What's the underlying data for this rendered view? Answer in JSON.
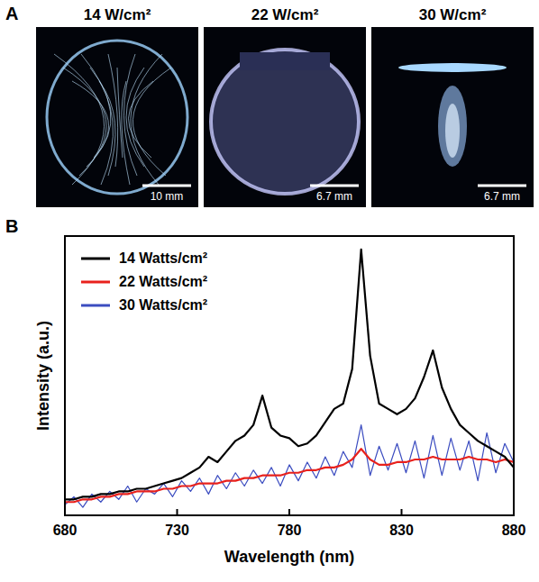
{
  "panel_letters": [
    "A",
    "B"
  ],
  "panel_a": {
    "images": [
      {
        "title": "14 W/cm²",
        "scale_bar": "10 mm"
      },
      {
        "title": "22 W/cm²",
        "scale_bar": "6.7 mm"
      },
      {
        "title": "30 W/cm²",
        "scale_bar": "6.7 mm"
      }
    ]
  },
  "chart_data": {
    "type": "line",
    "x_label": "Wavelength (nm)",
    "y_label": "Intensity (a.u.)",
    "x": [
      680,
      684,
      688,
      692,
      696,
      700,
      704,
      708,
      712,
      716,
      720,
      724,
      728,
      732,
      736,
      740,
      744,
      748,
      752,
      756,
      760,
      764,
      768,
      772,
      776,
      780,
      784,
      788,
      792,
      796,
      800,
      804,
      808,
      812,
      816,
      820,
      824,
      828,
      832,
      836,
      840,
      844,
      848,
      852,
      856,
      860,
      864,
      868,
      872,
      876,
      880
    ],
    "series": [
      {
        "name": "14 Watts/cm²",
        "color": "#000000",
        "values": [
          6,
          6,
          7,
          7,
          8,
          8,
          9,
          9,
          10,
          10,
          11,
          12,
          13,
          14,
          16,
          18,
          22,
          20,
          24,
          28,
          30,
          34,
          45,
          33,
          30,
          29,
          26,
          27,
          30,
          35,
          40,
          42,
          55,
          100,
          60,
          42,
          40,
          38,
          40,
          44,
          52,
          62,
          48,
          40,
          34,
          31,
          28,
          26,
          24,
          22,
          18
        ]
      },
      {
        "name": "22 Watts/cm²",
        "color": "#e8211c",
        "values": [
          5,
          5,
          6,
          6,
          7,
          7,
          8,
          8,
          9,
          9,
          9,
          10,
          10,
          11,
          11,
          12,
          12,
          12,
          13,
          13,
          14,
          14,
          15,
          15,
          15,
          16,
          16,
          17,
          17,
          18,
          18,
          19,
          21,
          25,
          21,
          19,
          19,
          20,
          20,
          21,
          21,
          22,
          21,
          21,
          21,
          22,
          21,
          21,
          20,
          21,
          20
        ]
      },
      {
        "name": "30 Watts/cm²",
        "color": "#3b4cc0",
        "values": [
          4,
          7,
          3,
          8,
          5,
          9,
          6,
          11,
          5,
          10,
          8,
          12,
          7,
          13,
          9,
          14,
          8,
          15,
          10,
          16,
          11,
          17,
          12,
          18,
          11,
          19,
          13,
          20,
          14,
          22,
          15,
          24,
          18,
          34,
          15,
          26,
          17,
          27,
          16,
          28,
          14,
          30,
          15,
          29,
          17,
          28,
          13,
          31,
          16,
          27,
          20
        ]
      }
    ],
    "xlim": [
      680,
      880
    ],
    "xticks": [
      680,
      730,
      780,
      830,
      880
    ],
    "ylim": [
      0,
      105
    ],
    "tick_labels": "x",
    "legend": "upper left",
    "grid": false
  }
}
